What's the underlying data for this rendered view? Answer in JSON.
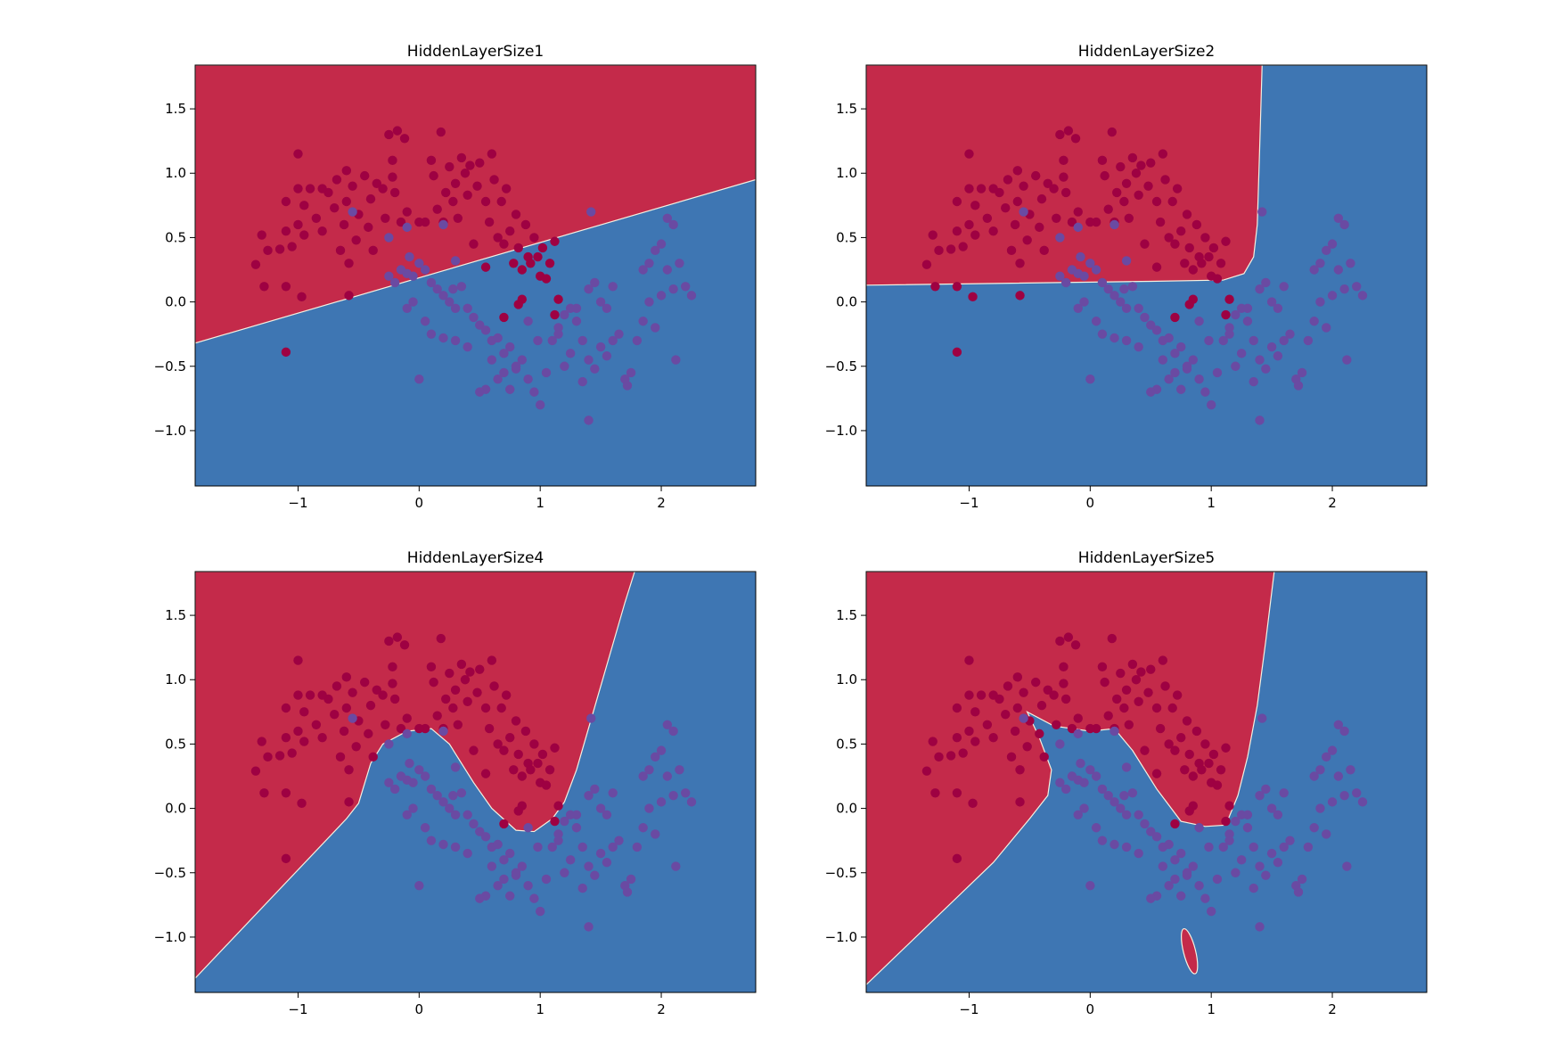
{
  "colors": {
    "class0_region": "#c42a4a",
    "class1_region": "#3e76b3",
    "class0_point": "#9e0142",
    "class1_point": "#6a4aa2",
    "boundary": "#f4f0e0",
    "axes": "#000000",
    "background": "#ffffff"
  },
  "chart_data": [
    {
      "type": "scatter",
      "title": "HiddenLayerSize1",
      "xlabel": "",
      "ylabel": "",
      "xlim": [
        -1.85,
        2.78
      ],
      "ylim": [
        -1.43,
        1.84
      ],
      "xticks": [
        -1,
        0,
        1,
        2
      ],
      "yticks": [
        -1.0,
        -0.5,
        0.0,
        0.5,
        1.0,
        1.5
      ],
      "xtick_labels": [
        "−1",
        "0",
        "1",
        "2"
      ],
      "ytick_labels": [
        "−1.0",
        "−0.5",
        "0.0",
        "0.5",
        "1.0",
        "1.5"
      ],
      "grid": false,
      "boundary": [
        [
          -1.85,
          -0.32
        ],
        [
          2.78,
          0.95
        ]
      ]
    },
    {
      "type": "scatter",
      "title": "HiddenLayerSize2",
      "xlabel": "",
      "ylabel": "",
      "xlim": [
        -1.85,
        2.78
      ],
      "ylim": [
        -1.43,
        1.84
      ],
      "xticks": [
        -1,
        0,
        1,
        2
      ],
      "yticks": [
        -1.0,
        -0.5,
        0.0,
        0.5,
        1.0,
        1.5
      ],
      "xtick_labels": [
        "−1",
        "0",
        "1",
        "2"
      ],
      "ytick_labels": [
        "−1.0",
        "−0.5",
        "0.0",
        "0.5",
        "1.0",
        "1.5"
      ],
      "grid": false,
      "boundary": [
        [
          -1.85,
          0.13
        ],
        [
          0.5,
          0.16
        ],
        [
          1.1,
          0.17
        ],
        [
          1.27,
          0.22
        ],
        [
          1.35,
          0.35
        ],
        [
          1.38,
          0.6
        ],
        [
          1.4,
          1.2
        ],
        [
          1.42,
          1.84
        ]
      ]
    },
    {
      "type": "scatter",
      "title": "HiddenLayerSize4",
      "xlabel": "",
      "ylabel": "",
      "xlim": [
        -1.85,
        2.78
      ],
      "ylim": [
        -1.43,
        1.84
      ],
      "xticks": [
        -1,
        0,
        1,
        2
      ],
      "yticks": [
        -1.0,
        -0.5,
        0.0,
        0.5,
        1.0,
        1.5
      ],
      "xtick_labels": [
        "−1",
        "0",
        "1",
        "2"
      ],
      "ytick_labels": [
        "−1.0",
        "−0.5",
        "0.0",
        "0.5",
        "1.0",
        "1.5"
      ],
      "grid": false,
      "boundary": [
        [
          -1.85,
          -1.32
        ],
        [
          -0.6,
          -0.08
        ],
        [
          -0.5,
          0.04
        ],
        [
          -0.4,
          0.35
        ],
        [
          -0.3,
          0.5
        ],
        [
          -0.1,
          0.6
        ],
        [
          0.1,
          0.62
        ],
        [
          0.25,
          0.5
        ],
        [
          0.45,
          0.2
        ],
        [
          0.6,
          0.0
        ],
        [
          0.8,
          -0.17
        ],
        [
          0.95,
          -0.18
        ],
        [
          1.1,
          -0.08
        ],
        [
          1.2,
          0.05
        ],
        [
          1.3,
          0.3
        ],
        [
          1.5,
          0.95
        ],
        [
          1.7,
          1.6
        ],
        [
          1.78,
          1.84
        ]
      ]
    },
    {
      "type": "scatter",
      "title": "HiddenLayerSize5",
      "xlabel": "",
      "ylabel": "",
      "xlim": [
        -1.85,
        2.78
      ],
      "ylim": [
        -1.43,
        1.84
      ],
      "xticks": [
        -1,
        0,
        1,
        2
      ],
      "yticks": [
        -1.0,
        -0.5,
        0.0,
        0.5,
        1.0,
        1.5
      ],
      "xtick_labels": [
        "−1",
        "0",
        "1",
        "2"
      ],
      "ytick_labels": [
        "−1.0",
        "−0.5",
        "0.0",
        "0.5",
        "1.0",
        "1.5"
      ],
      "grid": false,
      "boundary": [
        [
          -1.85,
          -1.37
        ],
        [
          -0.8,
          -0.42
        ],
        [
          -0.5,
          -0.08
        ],
        [
          -0.35,
          0.1
        ],
        [
          -0.32,
          0.3
        ],
        [
          -0.42,
          0.55
        ],
        [
          -0.52,
          0.75
        ],
        [
          -0.3,
          0.64
        ],
        [
          0.0,
          0.6
        ],
        [
          0.2,
          0.62
        ],
        [
          0.35,
          0.45
        ],
        [
          0.55,
          0.15
        ],
        [
          0.75,
          -0.1
        ],
        [
          0.95,
          -0.14
        ],
        [
          1.12,
          -0.13
        ],
        [
          1.22,
          0.1
        ],
        [
          1.3,
          0.4
        ],
        [
          1.38,
          0.8
        ],
        [
          1.45,
          1.3
        ],
        [
          1.52,
          1.84
        ]
      ],
      "island": {
        "cx": 0.82,
        "cy": -1.11,
        "rx": 0.05,
        "ry": 0.18
      }
    }
  ],
  "points": [
    [
      -1.1,
      -0.39,
      0
    ],
    [
      -1.1,
      0.12,
      0
    ],
    [
      -1.28,
      0.12,
      0
    ],
    [
      -0.97,
      0.04,
      0
    ],
    [
      -1.35,
      0.29,
      0
    ],
    [
      -1.3,
      0.52,
      0
    ],
    [
      -1.25,
      0.4,
      0
    ],
    [
      -1.15,
      0.41,
      0
    ],
    [
      -1.1,
      0.55,
      0
    ],
    [
      -1.05,
      0.43,
      0
    ],
    [
      -1.0,
      0.6,
      0
    ],
    [
      -0.95,
      0.52,
      0
    ],
    [
      -1.1,
      0.78,
      0
    ],
    [
      -1.0,
      0.88,
      0
    ],
    [
      -0.95,
      0.75,
      0
    ],
    [
      -0.9,
      0.88,
      0
    ],
    [
      -0.85,
      0.65,
      0
    ],
    [
      -0.8,
      0.55,
      0
    ],
    [
      -0.75,
      0.85,
      0
    ],
    [
      -0.7,
      0.73,
      0
    ],
    [
      -0.68,
      0.95,
      0
    ],
    [
      -0.65,
      0.4,
      0
    ],
    [
      -0.62,
      0.6,
      0
    ],
    [
      -0.6,
      0.78,
      0
    ],
    [
      -0.58,
      0.3,
      0
    ],
    [
      -0.55,
      0.9,
      0
    ],
    [
      -0.52,
      0.48,
      0
    ],
    [
      -0.5,
      0.68,
      0
    ],
    [
      -0.45,
      0.98,
      0
    ],
    [
      -0.42,
      0.58,
      0
    ],
    [
      -0.4,
      0.8,
      0
    ],
    [
      -0.38,
      0.4,
      0
    ],
    [
      -0.35,
      0.92,
      0
    ],
    [
      -0.3,
      0.88,
      0
    ],
    [
      -0.28,
      0.65,
      0
    ],
    [
      -0.25,
      1.3,
      0
    ],
    [
      -0.22,
      1.1,
      0
    ],
    [
      -0.2,
      0.85,
      0
    ],
    [
      -0.18,
      1.33,
      0
    ],
    [
      -0.15,
      0.62,
      0
    ],
    [
      -0.12,
      1.27,
      0
    ],
    [
      -1.0,
      1.15,
      0
    ],
    [
      -0.8,
      0.88,
      0
    ],
    [
      -0.6,
      1.02,
      0
    ],
    [
      -0.58,
      0.05,
      0
    ],
    [
      -0.22,
      0.97,
      0
    ],
    [
      -0.1,
      0.7,
      0
    ],
    [
      0.1,
      1.1,
      0
    ],
    [
      0.12,
      0.98,
      0
    ],
    [
      0.15,
      0.72,
      0
    ],
    [
      0.18,
      1.32,
      0
    ],
    [
      0.2,
      0.62,
      0
    ],
    [
      0.22,
      0.85,
      0
    ],
    [
      0.25,
      1.05,
      0
    ],
    [
      0.28,
      0.78,
      0
    ],
    [
      0.3,
      0.92,
      0
    ],
    [
      0.32,
      0.65,
      0
    ],
    [
      0.35,
      1.12,
      0
    ],
    [
      0.38,
      1.0,
      0
    ],
    [
      0.4,
      0.83,
      0
    ],
    [
      0.42,
      1.06,
      0
    ],
    [
      0.45,
      0.45,
      0
    ],
    [
      0.48,
      0.9,
      0
    ],
    [
      0.5,
      1.08,
      0
    ],
    [
      0.55,
      0.78,
      0
    ],
    [
      0.58,
      0.62,
      0
    ],
    [
      0.62,
      0.95,
      0
    ],
    [
      0.65,
      0.5,
      0
    ],
    [
      0.68,
      0.78,
      0
    ],
    [
      0.7,
      0.45,
      0
    ],
    [
      0.72,
      0.88,
      0
    ],
    [
      0.75,
      0.55,
      0
    ],
    [
      0.78,
      0.3,
      0
    ],
    [
      0.8,
      0.68,
      0
    ],
    [
      0.82,
      0.42,
      0
    ],
    [
      0.85,
      0.25,
      0
    ],
    [
      0.88,
      0.6,
      0
    ],
    [
      0.9,
      0.35,
      0
    ],
    [
      0.92,
      0.3,
      0
    ],
    [
      0.95,
      0.5,
      0
    ],
    [
      0.98,
      0.35,
      0
    ],
    [
      1.0,
      0.2,
      0
    ],
    [
      1.02,
      0.42,
      0
    ],
    [
      1.05,
      0.18,
      0
    ],
    [
      1.08,
      0.3,
      0
    ],
    [
      1.12,
      0.47,
      0
    ],
    [
      1.15,
      0.02,
      0
    ],
    [
      1.12,
      -0.1,
      0
    ],
    [
      0.85,
      0.02,
      0
    ],
    [
      0.82,
      -0.02,
      0
    ],
    [
      0.7,
      -0.12,
      0
    ],
    [
      0.55,
      0.27,
      0
    ],
    [
      0.6,
      1.15,
      0
    ],
    [
      0.05,
      0.62,
      0
    ],
    [
      0.0,
      0.62,
      0
    ],
    [
      -0.2,
      0.15,
      1
    ],
    [
      -0.1,
      0.22,
      1
    ],
    [
      -0.05,
      0.2,
      1
    ],
    [
      0.0,
      0.3,
      1
    ],
    [
      0.05,
      0.25,
      1
    ],
    [
      -0.15,
      0.25,
      1
    ],
    [
      0.1,
      0.15,
      1
    ],
    [
      -0.08,
      0.35,
      1
    ],
    [
      0.15,
      0.1,
      1
    ],
    [
      0.2,
      0.05,
      1
    ],
    [
      0.25,
      0.0,
      1
    ],
    [
      0.28,
      0.1,
      1
    ],
    [
      0.3,
      -0.05,
      1
    ],
    [
      0.35,
      0.12,
      1
    ],
    [
      0.4,
      -0.05,
      1
    ],
    [
      0.45,
      -0.12,
      1
    ],
    [
      0.5,
      -0.18,
      1
    ],
    [
      0.55,
      -0.22,
      1
    ],
    [
      0.6,
      -0.3,
      1
    ],
    [
      0.65,
      -0.28,
      1
    ],
    [
      0.7,
      -0.4,
      1
    ],
    [
      0.75,
      -0.35,
      1
    ],
    [
      0.8,
      -0.52,
      1
    ],
    [
      0.85,
      -0.45,
      1
    ],
    [
      0.9,
      -0.6,
      1
    ],
    [
      0.95,
      -0.7,
      1
    ],
    [
      1.0,
      -0.8,
      1
    ],
    [
      1.05,
      -0.55,
      1
    ],
    [
      0.6,
      -0.45,
      1
    ],
    [
      0.65,
      -0.6,
      1
    ],
    [
      0.55,
      -0.68,
      1
    ],
    [
      0.5,
      -0.7,
      1
    ],
    [
      0.7,
      -0.55,
      1
    ],
    [
      0.75,
      -0.68,
      1
    ],
    [
      0.4,
      -0.35,
      1
    ],
    [
      0.3,
      -0.3,
      1
    ],
    [
      0.2,
      -0.28,
      1
    ],
    [
      0.1,
      -0.25,
      1
    ],
    [
      0.05,
      -0.15,
      1
    ],
    [
      -0.05,
      0.0,
      1
    ],
    [
      -0.1,
      -0.05,
      1
    ],
    [
      0.0,
      -0.6,
      1
    ],
    [
      1.1,
      -0.3,
      1
    ],
    [
      1.15,
      -0.2,
      1
    ],
    [
      1.2,
      -0.1,
      1
    ],
    [
      1.25,
      -0.05,
      1
    ],
    [
      1.3,
      -0.15,
      1
    ],
    [
      1.35,
      -0.3,
      1
    ],
    [
      1.4,
      -0.45,
      1
    ],
    [
      1.45,
      -0.52,
      1
    ],
    [
      1.5,
      -0.35,
      1
    ],
    [
      1.55,
      -0.42,
      1
    ],
    [
      1.6,
      -0.3,
      1
    ],
    [
      1.65,
      -0.25,
      1
    ],
    [
      1.7,
      -0.6,
      1
    ],
    [
      1.75,
      -0.55,
      1
    ],
    [
      1.8,
      -0.3,
      1
    ],
    [
      1.85,
      -0.15,
      1
    ],
    [
      1.9,
      0.0,
      1
    ],
    [
      1.95,
      -0.2,
      1
    ],
    [
      2.0,
      0.05,
      1
    ],
    [
      2.05,
      0.25,
      1
    ],
    [
      2.1,
      0.1,
      1
    ],
    [
      2.15,
      0.3,
      1
    ],
    [
      2.2,
      0.12,
      1
    ],
    [
      2.25,
      0.05,
      1
    ],
    [
      2.0,
      0.45,
      1
    ],
    [
      2.1,
      0.6,
      1
    ],
    [
      2.05,
      0.65,
      1
    ],
    [
      1.95,
      0.4,
      1
    ],
    [
      1.9,
      0.3,
      1
    ],
    [
      1.85,
      0.25,
      1
    ],
    [
      2.12,
      -0.45,
      1
    ],
    [
      1.4,
      0.1,
      1
    ],
    [
      1.45,
      0.15,
      1
    ],
    [
      1.5,
      0.0,
      1
    ],
    [
      1.55,
      -0.05,
      1
    ],
    [
      1.6,
      0.12,
      1
    ],
    [
      1.3,
      -0.05,
      1
    ],
    [
      1.25,
      -0.4,
      1
    ],
    [
      1.2,
      -0.5,
      1
    ],
    [
      1.35,
      -0.62,
      1
    ],
    [
      1.42,
      0.7,
      1
    ],
    [
      1.4,
      -0.92,
      1
    ],
    [
      1.72,
      -0.65,
      1
    ],
    [
      -0.55,
      0.7,
      1
    ],
    [
      -0.25,
      0.5,
      1
    ],
    [
      -0.1,
      0.58,
      1
    ],
    [
      0.2,
      0.6,
      1
    ],
    [
      0.3,
      0.32,
      1
    ],
    [
      -0.25,
      0.2,
      1
    ],
    [
      0.8,
      -0.5,
      1
    ],
    [
      0.9,
      -0.15,
      1
    ],
    [
      1.15,
      -0.25,
      1
    ],
    [
      0.98,
      -0.3,
      1
    ]
  ]
}
